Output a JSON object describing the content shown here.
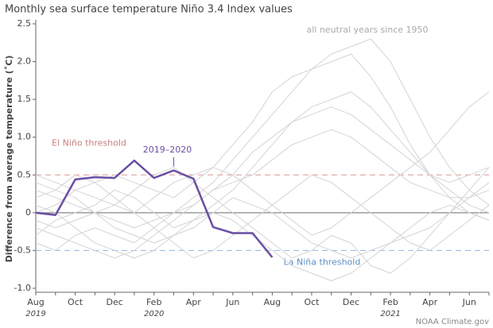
{
  "chart_data": {
    "type": "line",
    "title": "Monthly sea surface temperature Niño 3.4 Index values",
    "y_label": "Difference from average temperature (˚C)",
    "neutral_label": "all neutral years since 1950",
    "source": "NOAA Climate.gov",
    "categories": [
      "Aug",
      null,
      "Oct",
      null,
      "Dec",
      null,
      "Feb",
      null,
      "Apr",
      null,
      "Jun",
      null,
      "Aug",
      null,
      "Oct",
      null,
      "Dec",
      null,
      "Feb",
      null,
      "Apr",
      null,
      "Jun",
      null
    ],
    "year_labels": [
      "2019",
      null,
      null,
      null,
      null,
      null,
      "2020",
      null,
      null,
      null,
      null,
      null,
      null,
      null,
      null,
      null,
      null,
      null,
      "2021",
      null,
      null,
      null,
      null,
      null
    ],
    "ylim": [
      -1,
      2.5
    ],
    "yticks": [
      {
        "value": -1,
        "label": "-1.0"
      },
      -0.5,
      0,
      0.5,
      {
        "value": 1,
        "label": "1.0"
      },
      1.5,
      {
        "value": 2,
        "label": "2.0"
      },
      2.5
    ],
    "thresholds": [
      {
        "label": "El Niño threshold",
        "value": 0.5,
        "color": "#e3aaaa",
        "text_color": "#c77f7f"
      },
      {
        "label": "La Niña threshold",
        "value": -0.5,
        "color": "#9dbde0",
        "text_color": "#5b8fc7"
      }
    ],
    "series": [
      {
        "color": "#d4d4d4",
        "values": [
          0.3,
          0.2,
          0.1,
          0.0,
          -0.1,
          -0.2,
          -0.1,
          0.0,
          0.2,
          0.4,
          0.7,
          1.0,
          1.3,
          1.6,
          1.9,
          2.1,
          2.2,
          2.3,
          2.0,
          1.5,
          1.0,
          0.6,
          0.3,
          0.1
        ]
      },
      {
        "color": "#d4d4d4",
        "values": [
          0.5,
          0.4,
          0.3,
          0.4,
          0.5,
          0.4,
          0.3,
          0.2,
          0.4,
          0.6,
          0.9,
          1.2,
          1.6,
          1.8,
          1.9,
          2.0,
          2.1,
          1.8,
          1.4,
          0.9,
          0.5,
          0.2,
          0.0,
          -0.1
        ]
      },
      {
        "color": "#d4d4d4",
        "values": [
          -0.4,
          -0.5,
          -0.3,
          -0.2,
          -0.3,
          -0.4,
          -0.2,
          0.0,
          0.1,
          0.3,
          0.5,
          0.8,
          1.0,
          1.2,
          1.3,
          1.4,
          1.3,
          1.1,
          0.9,
          0.7,
          0.5,
          0.4,
          0.5,
          0.6
        ]
      },
      {
        "color": "#d4d4d4",
        "values": [
          0.1,
          0.0,
          -0.2,
          -0.4,
          -0.5,
          -0.6,
          -0.5,
          -0.3,
          -0.2,
          0.0,
          -0.1,
          -0.3,
          -0.5,
          -0.7,
          -0.8,
          -0.9,
          -0.8,
          -0.6,
          -0.4,
          -0.2,
          0.0,
          0.1,
          0.0,
          -0.1
        ]
      },
      {
        "color": "#d4d4d4",
        "values": [
          -0.2,
          -0.3,
          -0.4,
          -0.5,
          -0.6,
          -0.5,
          -0.3,
          -0.1,
          0.1,
          0.3,
          0.4,
          0.5,
          0.7,
          0.9,
          1.0,
          1.1,
          1.0,
          0.8,
          0.6,
          0.4,
          0.3,
          0.2,
          0.2,
          0.3
        ]
      },
      {
        "color": "#d4d4d4",
        "values": [
          0.4,
          0.3,
          0.2,
          0.0,
          -0.2,
          -0.3,
          -0.4,
          -0.3,
          -0.1,
          0.0,
          0.2,
          0.1,
          0.0,
          -0.2,
          -0.4,
          -0.5,
          -0.6,
          -0.5,
          -0.4,
          -0.3,
          -0.2,
          0.0,
          0.3,
          0.6
        ]
      },
      {
        "color": "#d4d4d4",
        "values": [
          0.0,
          0.1,
          0.3,
          0.2,
          0.1,
          0.0,
          0.2,
          0.4,
          0.5,
          0.6,
          0.5,
          0.3,
          0.1,
          -0.1,
          -0.3,
          -0.2,
          0.0,
          0.2,
          0.4,
          0.6,
          0.8,
          1.1,
          1.4,
          1.6
        ]
      },
      {
        "color": "#d4d4d4",
        "values": [
          -0.3,
          -0.1,
          0.0,
          0.1,
          0.3,
          0.2,
          0.0,
          -0.2,
          -0.1,
          0.1,
          0.3,
          0.6,
          0.9,
          1.2,
          1.4,
          1.5,
          1.6,
          1.4,
          1.1,
          0.8,
          0.5,
          0.3,
          0.1,
          0.0
        ]
      },
      {
        "color": "#d4d4d4",
        "values": [
          0.2,
          0.3,
          0.5,
          0.4,
          0.2,
          0.0,
          -0.2,
          -0.4,
          -0.6,
          -0.5,
          -0.3,
          -0.1,
          0.1,
          0.3,
          0.5,
          0.4,
          0.2,
          0.0,
          -0.2,
          -0.4,
          -0.5,
          -0.3,
          -0.1,
          0.1
        ]
      },
      {
        "color": "#d4d4d4",
        "values": [
          -0.1,
          -0.2,
          -0.1,
          0.0,
          0.1,
          0.3,
          0.5,
          0.6,
          0.4,
          0.2,
          0.0,
          -0.2,
          -0.4,
          -0.6,
          -0.5,
          -0.3,
          -0.4,
          -0.7,
          -0.8,
          -0.6,
          -0.3,
          0.0,
          0.2,
          0.4
        ]
      },
      {
        "name": "2019–2020",
        "color": "#6a4fa3",
        "values": [
          0,
          -0.03,
          0.44,
          0.47,
          0.46,
          0.69,
          0.46,
          0.56,
          0.45,
          -0.19,
          -0.27,
          -0.27,
          -0.59,
          null,
          null,
          null,
          null,
          null,
          null,
          null,
          null,
          null,
          null,
          null
        ]
      }
    ]
  }
}
